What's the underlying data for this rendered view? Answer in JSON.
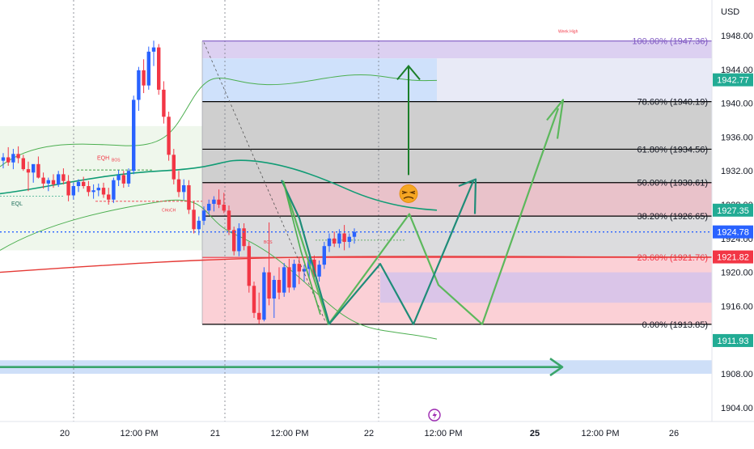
{
  "currency_label": "USD",
  "chart_data": {
    "type": "candlestick",
    "ylim": [
      1902.5,
      1950.0
    ],
    "price_axis": [
      1948.0,
      1944.0,
      1940.0,
      1936.0,
      1932.0,
      1928.0,
      1924.0,
      1920.0,
      1916.0,
      1912.0,
      1908.0,
      1904.0
    ],
    "time_axis": [
      "20",
      "12:00 PM",
      "21",
      "12:00 PM",
      "22",
      "12:00 PM",
      "25",
      "12:00 PM",
      "26"
    ],
    "fib_levels": [
      {
        "label": "100.00% (1947.36)",
        "value": 1947.36
      },
      {
        "label": "78.60% (1940.19)",
        "value": 1940.19
      },
      {
        "label": "61.80% (1934.56)",
        "value": 1934.56
      },
      {
        "label": "50.00% (1930.61)",
        "value": 1930.61
      },
      {
        "label": "38.20% (1926.65)",
        "value": 1926.65
      },
      {
        "label": "23.60% (1921.76)",
        "value": 1921.76
      },
      {
        "label": "0.00% (1913.85)",
        "value": 1913.85
      }
    ],
    "price_badges": [
      {
        "text": "1942.77",
        "value": 1942.77,
        "color": "#22ab94"
      },
      {
        "text": "1927.35",
        "value": 1927.35,
        "color": "#22ab94"
      },
      {
        "text": "1924.78",
        "value": 1924.78,
        "color": "#2962ff"
      },
      {
        "text": "1921.82",
        "value": 1921.82,
        "color": "#f23645"
      },
      {
        "text": "1911.93",
        "value": 1911.93,
        "color": "#22ab94"
      }
    ],
    "current_price": 1924.78,
    "annotations": {
      "week_high": "Week High",
      "eqh": "EQH",
      "eql": "EQL",
      "bos": "BOS",
      "choch": "CHoCH"
    },
    "colors": {
      "up": "#2962ff",
      "down": "#f23645",
      "band": "#4caf50",
      "teal": "#1e8c78",
      "red_ma": "#e53935",
      "arrow_green": "#1b7f2a"
    },
    "candles": [
      {
        "o": 1933.2,
        "h": 1934.1,
        "l": 1932.3,
        "c": 1933.6
      },
      {
        "o": 1933.6,
        "h": 1934.8,
        "l": 1932.6,
        "c": 1933.0
      },
      {
        "o": 1933.0,
        "h": 1934.6,
        "l": 1932.2,
        "c": 1934.0
      },
      {
        "o": 1934.0,
        "h": 1934.9,
        "l": 1932.9,
        "c": 1933.5
      },
      {
        "o": 1933.5,
        "h": 1933.9,
        "l": 1932.0,
        "c": 1932.2
      },
      {
        "o": 1932.2,
        "h": 1933.1,
        "l": 1929.6,
        "c": 1931.8
      },
      {
        "o": 1931.8,
        "h": 1932.4,
        "l": 1930.6,
        "c": 1932.8
      },
      {
        "o": 1932.8,
        "h": 1933.7,
        "l": 1931.1,
        "c": 1931.2
      },
      {
        "o": 1931.2,
        "h": 1931.8,
        "l": 1929.9,
        "c": 1930.5
      },
      {
        "o": 1930.5,
        "h": 1931.2,
        "l": 1929.6,
        "c": 1930.9
      },
      {
        "o": 1930.9,
        "h": 1931.6,
        "l": 1930.0,
        "c": 1930.4
      },
      {
        "o": 1930.4,
        "h": 1932.0,
        "l": 1930.1,
        "c": 1931.6
      },
      {
        "o": 1931.6,
        "h": 1932.3,
        "l": 1930.4,
        "c": 1930.8
      },
      {
        "o": 1930.8,
        "h": 1931.5,
        "l": 1928.4,
        "c": 1929.1
      },
      {
        "o": 1929.1,
        "h": 1930.6,
        "l": 1928.6,
        "c": 1930.2
      },
      {
        "o": 1930.2,
        "h": 1931.0,
        "l": 1929.5,
        "c": 1930.7
      },
      {
        "o": 1930.7,
        "h": 1931.3,
        "l": 1929.9,
        "c": 1930.2
      },
      {
        "o": 1930.2,
        "h": 1930.8,
        "l": 1929.0,
        "c": 1929.5
      },
      {
        "o": 1929.5,
        "h": 1930.4,
        "l": 1928.7,
        "c": 1929.7
      },
      {
        "o": 1929.7,
        "h": 1930.5,
        "l": 1929.0,
        "c": 1930.0
      },
      {
        "o": 1930.0,
        "h": 1930.6,
        "l": 1928.8,
        "c": 1929.2
      },
      {
        "o": 1929.2,
        "h": 1930.0,
        "l": 1928.0,
        "c": 1928.6
      },
      {
        "o": 1928.6,
        "h": 1931.2,
        "l": 1928.2,
        "c": 1930.9
      },
      {
        "o": 1930.9,
        "h": 1932.1,
        "l": 1930.2,
        "c": 1931.5
      },
      {
        "o": 1931.5,
        "h": 1932.0,
        "l": 1930.0,
        "c": 1930.5
      },
      {
        "o": 1930.5,
        "h": 1932.3,
        "l": 1930.1,
        "c": 1932.0
      },
      {
        "o": 1932.0,
        "h": 1940.9,
        "l": 1931.6,
        "c": 1940.4
      },
      {
        "o": 1940.4,
        "h": 1944.3,
        "l": 1939.1,
        "c": 1943.9
      },
      {
        "o": 1943.9,
        "h": 1945.2,
        "l": 1941.2,
        "c": 1942.1
      },
      {
        "o": 1942.1,
        "h": 1946.7,
        "l": 1941.6,
        "c": 1946.1
      },
      {
        "o": 1946.1,
        "h": 1947.4,
        "l": 1944.4,
        "c": 1946.6
      },
      {
        "o": 1946.6,
        "h": 1947.0,
        "l": 1941.0,
        "c": 1941.6
      },
      {
        "o": 1941.6,
        "h": 1942.6,
        "l": 1937.6,
        "c": 1938.4
      },
      {
        "o": 1938.4,
        "h": 1939.0,
        "l": 1933.2,
        "c": 1933.9
      },
      {
        "o": 1933.9,
        "h": 1934.6,
        "l": 1930.4,
        "c": 1931.0
      },
      {
        "o": 1931.0,
        "h": 1932.0,
        "l": 1928.9,
        "c": 1929.5
      },
      {
        "o": 1929.5,
        "h": 1931.0,
        "l": 1928.6,
        "c": 1930.3
      },
      {
        "o": 1930.3,
        "h": 1930.9,
        "l": 1926.9,
        "c": 1927.4
      },
      {
        "o": 1927.4,
        "h": 1928.4,
        "l": 1924.6,
        "c": 1925.1
      },
      {
        "o": 1925.1,
        "h": 1926.6,
        "l": 1924.4,
        "c": 1926.1
      },
      {
        "o": 1926.1,
        "h": 1927.8,
        "l": 1925.6,
        "c": 1927.3
      },
      {
        "o": 1927.3,
        "h": 1928.6,
        "l": 1926.9,
        "c": 1928.1
      },
      {
        "o": 1928.1,
        "h": 1929.0,
        "l": 1927.2,
        "c": 1928.6
      },
      {
        "o": 1928.6,
        "h": 1929.8,
        "l": 1927.6,
        "c": 1928.0
      },
      {
        "o": 1928.0,
        "h": 1929.4,
        "l": 1927.0,
        "c": 1927.3
      },
      {
        "o": 1927.3,
        "h": 1927.9,
        "l": 1924.4,
        "c": 1925.0
      },
      {
        "o": 1925.0,
        "h": 1925.4,
        "l": 1922.0,
        "c": 1922.5
      },
      {
        "o": 1922.5,
        "h": 1925.8,
        "l": 1921.9,
        "c": 1925.2
      },
      {
        "o": 1925.2,
        "h": 1925.8,
        "l": 1922.6,
        "c": 1923.1
      },
      {
        "o": 1923.1,
        "h": 1923.6,
        "l": 1917.6,
        "c": 1918.4
      },
      {
        "o": 1918.4,
        "h": 1918.9,
        "l": 1914.6,
        "c": 1915.2
      },
      {
        "o": 1915.2,
        "h": 1917.6,
        "l": 1913.9,
        "c": 1914.4
      },
      {
        "o": 1914.4,
        "h": 1920.6,
        "l": 1914.2,
        "c": 1920.0
      },
      {
        "o": 1920.0,
        "h": 1925.9,
        "l": 1916.1,
        "c": 1916.9
      },
      {
        "o": 1916.9,
        "h": 1919.6,
        "l": 1914.6,
        "c": 1919.1
      },
      {
        "o": 1919.1,
        "h": 1920.6,
        "l": 1916.8,
        "c": 1917.6
      },
      {
        "o": 1917.6,
        "h": 1921.1,
        "l": 1917.1,
        "c": 1920.6
      },
      {
        "o": 1920.6,
        "h": 1921.6,
        "l": 1917.6,
        "c": 1918.2
      },
      {
        "o": 1918.2,
        "h": 1921.5,
        "l": 1917.9,
        "c": 1921.0
      },
      {
        "o": 1921.0,
        "h": 1921.7,
        "l": 1918.6,
        "c": 1920.1
      },
      {
        "o": 1920.1,
        "h": 1920.9,
        "l": 1918.9,
        "c": 1920.4
      },
      {
        "o": 1920.4,
        "h": 1921.9,
        "l": 1919.4,
        "c": 1921.5
      },
      {
        "o": 1921.5,
        "h": 1922.0,
        "l": 1918.9,
        "c": 1919.5
      },
      {
        "o": 1919.5,
        "h": 1921.4,
        "l": 1918.9,
        "c": 1920.9
      },
      {
        "o": 1920.9,
        "h": 1923.6,
        "l": 1920.4,
        "c": 1923.1
      },
      {
        "o": 1923.1,
        "h": 1924.6,
        "l": 1922.4,
        "c": 1924.0
      },
      {
        "o": 1924.0,
        "h": 1924.8,
        "l": 1923.0,
        "c": 1923.4
      },
      {
        "o": 1923.4,
        "h": 1925.1,
        "l": 1922.9,
        "c": 1924.6
      },
      {
        "o": 1924.6,
        "h": 1925.6,
        "l": 1922.6,
        "c": 1923.6
      },
      {
        "o": 1923.6,
        "h": 1924.6,
        "l": 1922.9,
        "c": 1924.2
      },
      {
        "o": 1924.2,
        "h": 1925.2,
        "l": 1923.4,
        "c": 1924.78
      }
    ]
  }
}
